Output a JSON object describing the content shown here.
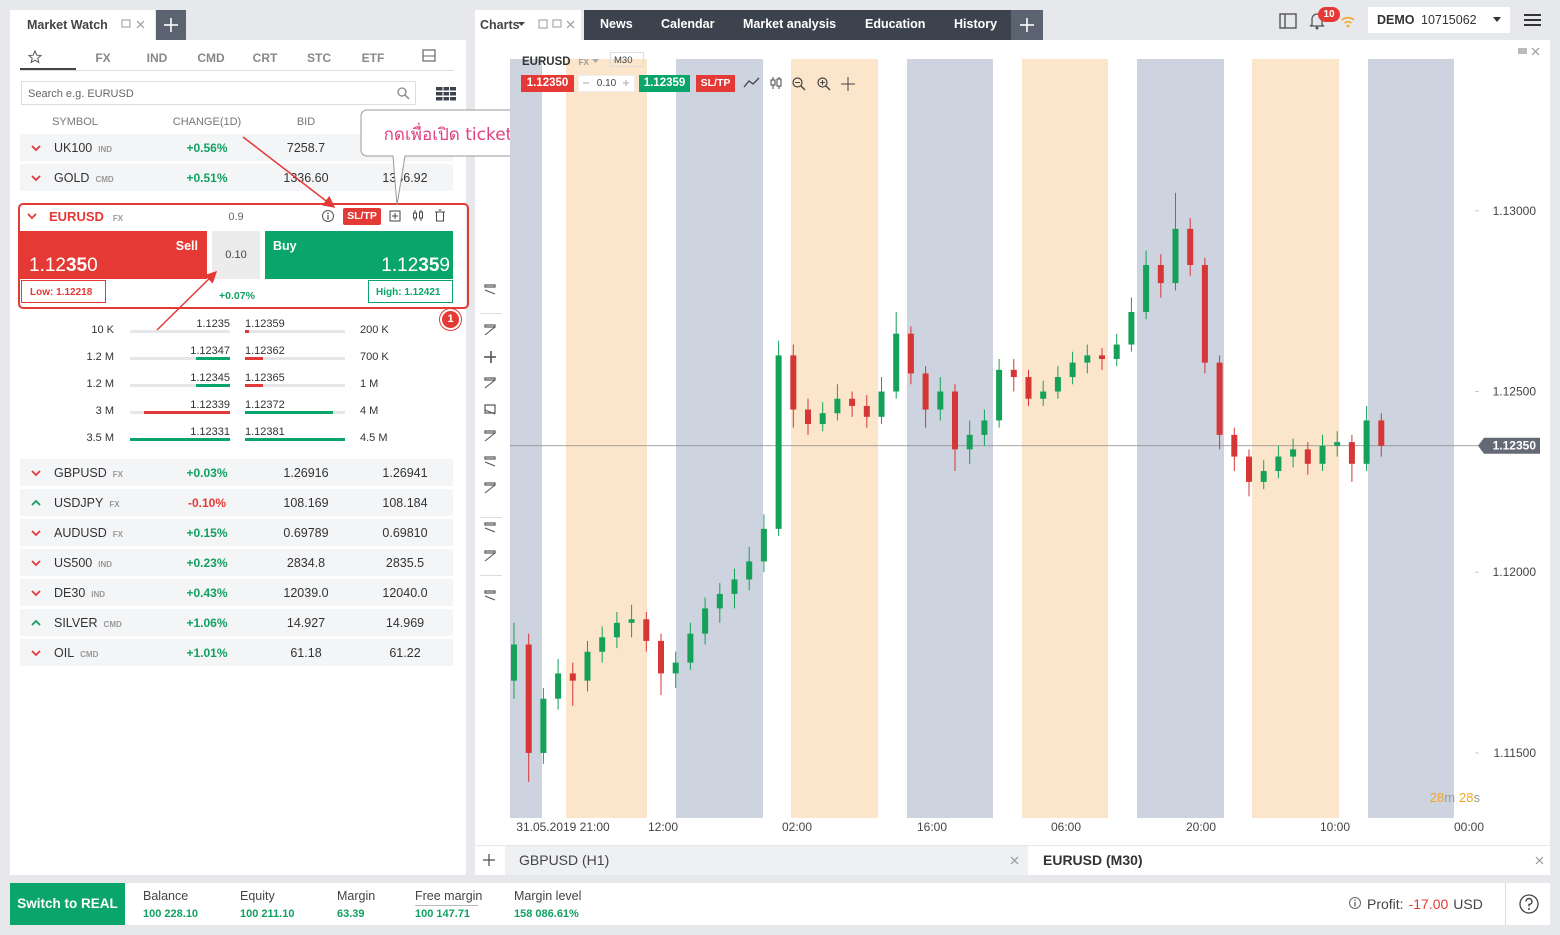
{
  "header": {
    "market_watch_tab": "Market Watch",
    "charts_tab": "Charts",
    "nav": [
      "News",
      "Calendar",
      "Market analysis",
      "Education",
      "History"
    ],
    "notifications": "10",
    "account_type": "DEMO",
    "account_number": "10715062"
  },
  "market_watch": {
    "filters": [
      "FX",
      "IND",
      "CMD",
      "CRT",
      "STC",
      "ETF"
    ],
    "search_placeholder": "Search e.g. EURUSD",
    "columns": [
      "SYMBOL",
      "CHANGE(1D)",
      "BID"
    ],
    "rows_top": [
      {
        "symbol": "UK100",
        "class": "IND",
        "trend": "down",
        "change": "+0.56%",
        "bid": "7258.7"
      },
      {
        "symbol": "GOLD",
        "class": "CMD",
        "trend": "down",
        "change": "+0.51%",
        "bid": "1336.60",
        "ask": "1336.92"
      }
    ],
    "expanded": {
      "symbol": "EURUSD",
      "class": "FX",
      "spread": "0.9",
      "sltp": "SL/TP",
      "sell_label": "Sell",
      "buy_label": "Buy",
      "sell_price": [
        "1.12",
        "35",
        "0"
      ],
      "buy_price": [
        "1.12",
        "35",
        "9"
      ],
      "volume": "0.10",
      "low": "Low: 1.12218",
      "high": "High: 1.12421",
      "change": "+0.07%"
    },
    "depth": [
      [
        "10 K",
        "1.1235",
        "1.12359",
        "200 K"
      ],
      [
        "1.2 M",
        "1.12347",
        "1.12362",
        "700 K"
      ],
      [
        "1.2 M",
        "1.12345",
        "1.12365",
        "1 M"
      ],
      [
        "3 M",
        "1.12339",
        "1.12372",
        "4 M"
      ],
      [
        "3.5 M",
        "1.12331",
        "1.12381",
        "4.5 M"
      ]
    ],
    "rows_bottom": [
      {
        "symbol": "GBPUSD",
        "class": "FX",
        "trend": "down",
        "change": "+0.03%",
        "bid": "1.26916",
        "ask": "1.26941"
      },
      {
        "symbol": "USDJPY",
        "class": "FX",
        "trend": "up",
        "change": "-0.10%",
        "bid": "108.169",
        "ask": "108.184"
      },
      {
        "symbol": "AUDUSD",
        "class": "FX",
        "trend": "down",
        "change": "+0.15%",
        "bid": "0.69789",
        "ask": "0.69810"
      },
      {
        "symbol": "US500",
        "class": "IND",
        "trend": "down",
        "change": "+0.23%",
        "bid": "2834.8",
        "ask": "2835.5"
      },
      {
        "symbol": "DE30",
        "class": "IND",
        "trend": "down",
        "change": "+0.43%",
        "bid": "12039.0",
        "ask": "12040.0"
      },
      {
        "symbol": "SILVER",
        "class": "CMD",
        "trend": "up",
        "change": "+1.06%",
        "bid": "14.927",
        "ask": "14.969"
      },
      {
        "symbol": "OIL",
        "class": "CMD",
        "trend": "down",
        "change": "+1.01%",
        "bid": "61.18",
        "ask": "61.22"
      }
    ]
  },
  "callout": "กดเพื่อเปิด ticket",
  "badge": "1",
  "chart": {
    "symbol": "EURUSD",
    "class": "FX",
    "timeframe": "M30",
    "bid": "1.12350",
    "volume": "0.10",
    "ask": "1.12359",
    "sltp": "SL/TP",
    "ylim": [
      1.1132,
      1.1342
    ],
    "yticks": [
      {
        "value": 1.13,
        "label": "1.13000"
      },
      {
        "value": 1.125,
        "label": "1.12500"
      },
      {
        "value": 1.12,
        "label": "1.12000"
      },
      {
        "value": 1.115,
        "label": "1.11500"
      }
    ],
    "current_price": {
      "value": 1.1235,
      "label": "1.12350"
    },
    "xlabels": [
      "31.05.2019 21:00",
      "12:00",
      "02:00",
      "16:00",
      "06:00",
      "20:00",
      "10:00",
      "00:00"
    ],
    "timer": [
      "28",
      "m",
      "28",
      "s"
    ],
    "candles": [
      [
        1.117,
        1.1186,
        1.1165,
        1.118
      ],
      [
        1.118,
        1.1183,
        1.1142,
        1.115
      ],
      [
        1.115,
        1.1168,
        1.1147,
        1.1165
      ],
      [
        1.1165,
        1.1176,
        1.1162,
        1.1172
      ],
      [
        1.1172,
        1.1175,
        1.1163,
        1.117
      ],
      [
        1.117,
        1.1181,
        1.1167,
        1.1178
      ],
      [
        1.1178,
        1.1185,
        1.1175,
        1.1182
      ],
      [
        1.1182,
        1.1189,
        1.1179,
        1.1186
      ],
      [
        1.1186,
        1.1191,
        1.1182,
        1.1187
      ],
      [
        1.1187,
        1.1189,
        1.1178,
        1.1181
      ],
      [
        1.1181,
        1.1183,
        1.1166,
        1.1172
      ],
      [
        1.1172,
        1.1178,
        1.1168,
        1.1175
      ],
      [
        1.1175,
        1.1186,
        1.1173,
        1.1183
      ],
      [
        1.1183,
        1.1193,
        1.118,
        1.119
      ],
      [
        1.119,
        1.1197,
        1.1186,
        1.1194
      ],
      [
        1.1194,
        1.1201,
        1.119,
        1.1198
      ],
      [
        1.1198,
        1.1207,
        1.1195,
        1.1203
      ],
      [
        1.1203,
        1.1216,
        1.12,
        1.1212
      ],
      [
        1.1212,
        1.1264,
        1.121,
        1.126
      ],
      [
        1.126,
        1.1263,
        1.124,
        1.1245
      ],
      [
        1.1245,
        1.1248,
        1.1238,
        1.1241
      ],
      [
        1.1241,
        1.1247,
        1.1239,
        1.1244
      ],
      [
        1.1244,
        1.1252,
        1.1242,
        1.1248
      ],
      [
        1.1248,
        1.125,
        1.1243,
        1.1246
      ],
      [
        1.1246,
        1.1249,
        1.124,
        1.1243
      ],
      [
        1.1243,
        1.1254,
        1.1241,
        1.125
      ],
      [
        1.125,
        1.1272,
        1.1248,
        1.1266
      ],
      [
        1.1266,
        1.1268,
        1.1252,
        1.1255
      ],
      [
        1.1255,
        1.1257,
        1.124,
        1.1245
      ],
      [
        1.1245,
        1.1254,
        1.1242,
        1.125
      ],
      [
        1.125,
        1.1252,
        1.1228,
        1.1234
      ],
      [
        1.1234,
        1.1242,
        1.123,
        1.1238
      ],
      [
        1.1238,
        1.1245,
        1.1235,
        1.1242
      ],
      [
        1.1242,
        1.1259,
        1.124,
        1.1256
      ],
      [
        1.1256,
        1.1259,
        1.125,
        1.1254
      ],
      [
        1.1254,
        1.1256,
        1.1246,
        1.1248
      ],
      [
        1.1248,
        1.1253,
        1.1246,
        1.125
      ],
      [
        1.125,
        1.1257,
        1.1248,
        1.1254
      ],
      [
        1.1254,
        1.1261,
        1.1252,
        1.1258
      ],
      [
        1.1258,
        1.1263,
        1.1255,
        1.126
      ],
      [
        1.126,
        1.1262,
        1.1256,
        1.1259
      ],
      [
        1.1259,
        1.1266,
        1.1257,
        1.1263
      ],
      [
        1.1263,
        1.1276,
        1.1261,
        1.1272
      ],
      [
        1.1272,
        1.1289,
        1.127,
        1.1285
      ],
      [
        1.1285,
        1.1288,
        1.1276,
        1.128
      ],
      [
        1.128,
        1.1305,
        1.1278,
        1.1295
      ],
      [
        1.1295,
        1.1298,
        1.1282,
        1.1285
      ],
      [
        1.1285,
        1.1287,
        1.1255,
        1.1258
      ],
      [
        1.1258,
        1.126,
        1.1234,
        1.1238
      ],
      [
        1.1238,
        1.124,
        1.1228,
        1.1232
      ],
      [
        1.1232,
        1.1234,
        1.1221,
        1.1225
      ],
      [
        1.1225,
        1.1231,
        1.1223,
        1.1228
      ],
      [
        1.1228,
        1.1235,
        1.1226,
        1.1232
      ],
      [
        1.1232,
        1.1237,
        1.1229,
        1.1234
      ],
      [
        1.1234,
        1.1236,
        1.1227,
        1.123
      ],
      [
        1.123,
        1.1238,
        1.1228,
        1.1235
      ],
      [
        1.1235,
        1.1239,
        1.1232,
        1.1236
      ],
      [
        1.1236,
        1.1238,
        1.1225,
        1.123
      ],
      [
        1.123,
        1.1246,
        1.1228,
        1.1242
      ],
      [
        1.1242,
        1.1244,
        1.1232,
        1.1235
      ]
    ],
    "tabs": [
      "GBPUSD (H1)",
      "EURUSD (M30)"
    ]
  },
  "footer": {
    "switch": "Switch to REAL",
    "stats": [
      [
        "Balance",
        "100 228.10"
      ],
      [
        "Equity",
        "100 211.10"
      ],
      [
        "Margin",
        "63.39"
      ],
      [
        "Free margin",
        "100 147.71"
      ],
      [
        "Margin level",
        "158 086.61%"
      ]
    ],
    "profit_label": "Profit:",
    "profit_value": "-17.00",
    "currency": "USD"
  }
}
